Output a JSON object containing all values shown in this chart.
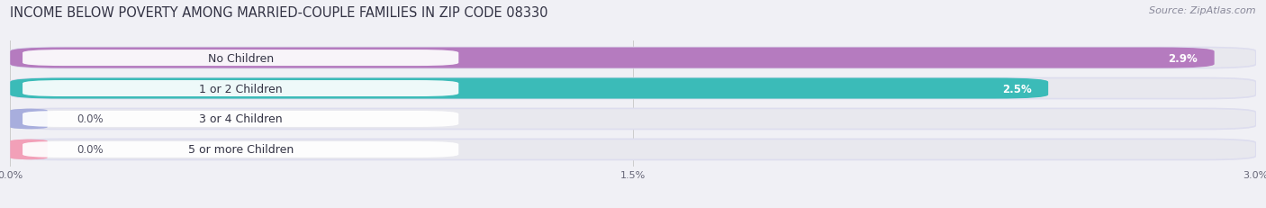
{
  "title": "INCOME BELOW POVERTY AMONG MARRIED-COUPLE FAMILIES IN ZIP CODE 08330",
  "source": "Source: ZipAtlas.com",
  "categories": [
    "No Children",
    "1 or 2 Children",
    "3 or 4 Children",
    "5 or more Children"
  ],
  "values": [
    2.9,
    2.5,
    0.0,
    0.0
  ],
  "bar_colors": [
    "#b57bbf",
    "#3bbbb8",
    "#a8aedd",
    "#f2a0b8"
  ],
  "xlim": [
    0,
    3.0
  ],
  "xticks": [
    0.0,
    1.5,
    3.0
  ],
  "xtick_labels": [
    "0.0%",
    "1.5%",
    "3.0%"
  ],
  "title_fontsize": 10.5,
  "source_fontsize": 8,
  "label_fontsize": 9,
  "value_fontsize": 8.5,
  "background_color": "#f0f0f5",
  "bar_bg_color": "#e8e8ee",
  "white_label_bg": "#ffffff"
}
